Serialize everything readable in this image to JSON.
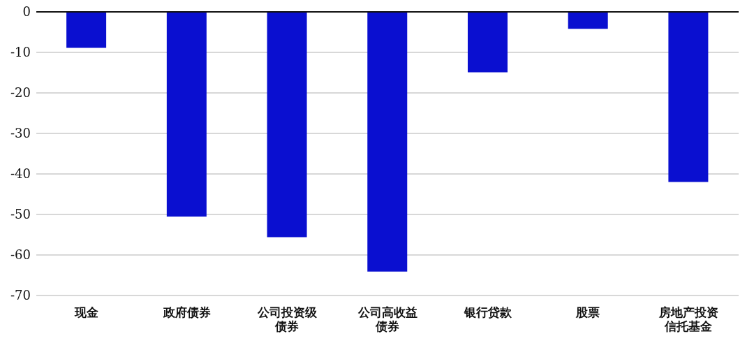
{
  "chart_data": {
    "type": "bar",
    "categories": [
      "现金",
      "政府债券",
      "公司投资级债券",
      "公司高收益债券",
      "银行贷款",
      "股票",
      "房地产投资信托基金"
    ],
    "values": [
      -8.9,
      -50.5,
      -55.6,
      -64.1,
      -14.9,
      -4.2,
      -42.0
    ],
    "color": "#0a0fd0",
    "ylim": [
      -70,
      0
    ],
    "yticks": [
      0,
      -10,
      -20,
      -30,
      -40,
      -50,
      -60,
      -70
    ],
    "grid": "y"
  }
}
